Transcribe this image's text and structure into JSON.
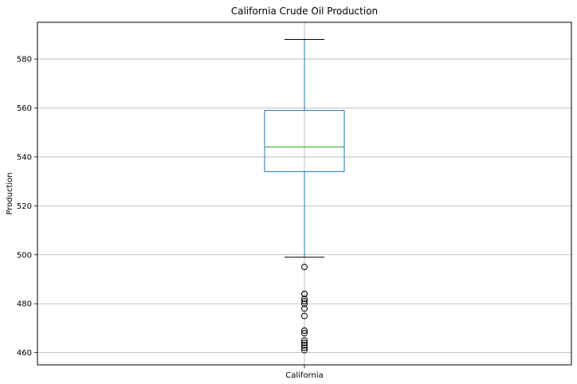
{
  "chart_data": {
    "type": "box",
    "title": "California Crude Oil Production",
    "xlabel": "",
    "ylabel": "Production",
    "categories": [
      "California"
    ],
    "ylim": [
      455,
      595
    ],
    "yticks": [
      460,
      480,
      500,
      520,
      540,
      560,
      580
    ],
    "grid": true,
    "boxes": [
      {
        "category": "California",
        "whisker_low": 499,
        "q1": 534,
        "median": 544,
        "q3": 559,
        "whisker_high": 588,
        "outliers": [
          495,
          484,
          484,
          482,
          481,
          480,
          478,
          475,
          469,
          468,
          465,
          464,
          463,
          462,
          461
        ]
      }
    ],
    "colors": {
      "box": "#1f77b4",
      "median": "#2ca02c",
      "whisker": "#1f77b4",
      "cap": "#000000",
      "outlier_edge": "#000000",
      "grid": "#b0b0b0"
    }
  }
}
